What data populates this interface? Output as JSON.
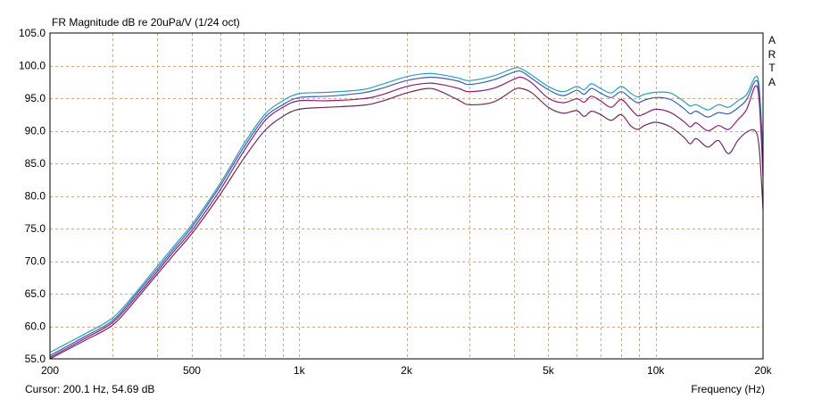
{
  "chart_data": {
    "type": "line",
    "title": "FR Magnitude dB re 20uPa/V (1/24 oct)",
    "xlabel": "Frequency (Hz)",
    "ylabel": "",
    "x_scale": "log",
    "xlim": [
      200,
      20000
    ],
    "ylim": [
      55,
      105
    ],
    "grid": true,
    "y_ticks": [
      "55.0",
      "60.0",
      "65.0",
      "70.0",
      "75.0",
      "80.0",
      "85.0",
      "90.0",
      "95.0",
      "100.0",
      "105.0"
    ],
    "x_ticks": [
      {
        "value": 200,
        "label": "200"
      },
      {
        "value": 500,
        "label": "500"
      },
      {
        "value": 1000,
        "label": "1k"
      },
      {
        "value": 2000,
        "label": "2k"
      },
      {
        "value": 5000,
        "label": "5k"
      },
      {
        "value": 10000,
        "label": "10k"
      },
      {
        "value": 20000,
        "label": "20k"
      }
    ],
    "series": [
      {
        "color": "#2a9fb8",
        "x": [
          200,
          250,
          300,
          350,
          400,
          450,
          500,
          600,
          700,
          800,
          900,
          1000,
          1200,
          1500,
          1700,
          2000,
          2300,
          2500,
          2800,
          3000,
          3500,
          4000,
          4200,
          4500,
          5000,
          5500,
          6000,
          6300,
          6600,
          7000,
          7500,
          8000,
          8500,
          8900,
          9300,
          10000,
          11000,
          12000,
          12500,
          13000,
          14000,
          15000,
          16000,
          17000,
          18000,
          19000,
          19500,
          20000
        ],
        "y": [
          56.0,
          58.8,
          61.3,
          65.3,
          69.2,
          72.6,
          75.6,
          81.9,
          88.0,
          92.5,
          94.6,
          95.7,
          95.9,
          96.3,
          97.1,
          98.3,
          98.8,
          98.6,
          98.1,
          97.7,
          98.4,
          99.6,
          99.5,
          98.5,
          96.8,
          96.0,
          96.8,
          96.3,
          97.2,
          96.5,
          95.8,
          96.8,
          95.8,
          95.2,
          95.6,
          95.9,
          95.8,
          94.5,
          93.8,
          94.0,
          93.2,
          94.0,
          93.6,
          94.6,
          95.6,
          98.2,
          96.8,
          86.5
        ]
      },
      {
        "color": "#3a5fae",
        "x": [
          200,
          250,
          300,
          350,
          400,
          450,
          500,
          600,
          700,
          800,
          900,
          1000,
          1200,
          1500,
          1700,
          2000,
          2300,
          2500,
          2800,
          3000,
          3500,
          4000,
          4200,
          4500,
          5000,
          5500,
          6000,
          6300,
          6600,
          7000,
          7500,
          8000,
          8500,
          8900,
          9300,
          10000,
          11000,
          12000,
          12500,
          13000,
          14000,
          15000,
          16000,
          17000,
          18000,
          19000,
          19500,
          20000
        ],
        "y": [
          55.5,
          58.4,
          60.9,
          65.0,
          68.8,
          72.2,
          75.2,
          81.5,
          87.5,
          92.0,
          94.0,
          95.1,
          95.3,
          95.8,
          96.5,
          97.7,
          98.2,
          98.1,
          97.6,
          97.1,
          97.8,
          99.0,
          99.1,
          98.0,
          96.3,
          95.4,
          96.2,
          95.6,
          96.5,
          95.8,
          95.1,
          96.0,
          95.0,
          94.3,
          94.7,
          95.1,
          94.8,
          93.4,
          92.6,
          93.0,
          92.1,
          92.8,
          92.6,
          93.5,
          94.8,
          97.6,
          96.0,
          85.5
        ]
      },
      {
        "color": "#8a1a7a",
        "x": [
          200,
          250,
          300,
          350,
          400,
          450,
          500,
          600,
          700,
          800,
          900,
          1000,
          1200,
          1500,
          1700,
          2000,
          2300,
          2500,
          2800,
          3000,
          3500,
          4000,
          4200,
          4500,
          5000,
          5500,
          6000,
          6300,
          6600,
          7000,
          7500,
          8000,
          8500,
          8900,
          9300,
          10000,
          11000,
          12000,
          12500,
          13000,
          14000,
          15000,
          16000,
          17000,
          18000,
          19000,
          19500,
          20000
        ],
        "y": [
          55.2,
          58.1,
          60.6,
          64.6,
          68.4,
          71.8,
          74.7,
          80.9,
          86.9,
          91.5,
          93.6,
          94.6,
          94.6,
          94.9,
          95.5,
          96.8,
          97.3,
          97.1,
          96.5,
          96.0,
          96.5,
          97.9,
          98.2,
          97.3,
          95.0,
          94.3,
          94.9,
          94.4,
          95.3,
          94.6,
          93.6,
          94.8,
          93.4,
          92.3,
          92.6,
          93.3,
          92.8,
          91.4,
          90.6,
          91.2,
          90.0,
          90.8,
          90.2,
          91.7,
          93.3,
          96.8,
          94.8,
          83.0
        ]
      },
      {
        "color": "#6e2a5a",
        "x": [
          200,
          250,
          300,
          350,
          400,
          450,
          500,
          600,
          700,
          800,
          900,
          1000,
          1200,
          1500,
          1700,
          2000,
          2300,
          2500,
          2800,
          3000,
          3500,
          4000,
          4200,
          4500,
          5000,
          5500,
          6000,
          6300,
          6600,
          7000,
          7500,
          8000,
          8500,
          8900,
          9300,
          10000,
          11000,
          12000,
          12500,
          13000,
          14000,
          15000,
          16000,
          17000,
          18000,
          19000,
          19500,
          20000
        ],
        "y": [
          55.0,
          57.8,
          60.2,
          64.2,
          68.0,
          71.3,
          74.2,
          80.2,
          85.8,
          90.0,
          92.2,
          93.3,
          93.6,
          93.9,
          94.5,
          95.8,
          96.5,
          96.0,
          94.7,
          94.0,
          94.4,
          96.3,
          96.5,
          95.8,
          93.6,
          92.7,
          93.1,
          92.2,
          93.0,
          92.5,
          91.6,
          92.5,
          90.8,
          90.2,
          90.8,
          91.3,
          90.6,
          89.0,
          88.0,
          88.8,
          87.5,
          88.5,
          86.5,
          88.5,
          89.8,
          90.0,
          87.5,
          78.0
        ]
      }
    ]
  },
  "page": {
    "cursor_readout": "Cursor: 200.1 Hz, 54.69 dB",
    "brand_letters": [
      "A",
      "R",
      "T",
      "A"
    ]
  }
}
